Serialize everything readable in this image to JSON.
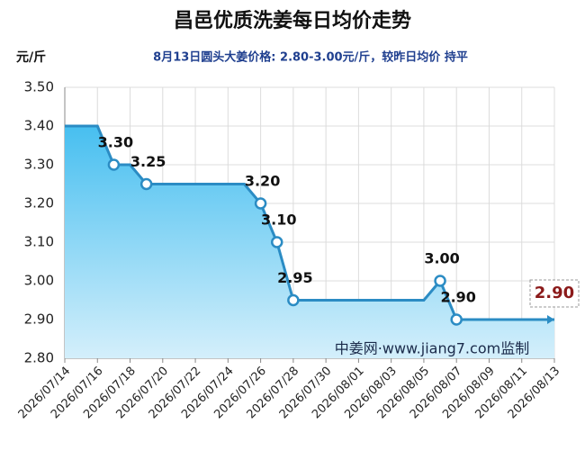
{
  "chart_data": {
    "type": "area",
    "title": "昌邑优质洗姜每日均价走势",
    "subtitle": "8月13日圆头大姜价格: 2.80-3.00元/斤，较昨日均价 持平",
    "y_label": "元/斤",
    "annotation": "中姜网·www.jiang7.com监制",
    "categories": [
      "2026/07/14",
      null,
      "2026/07/16",
      null,
      "2026/07/18",
      null,
      "2026/07/20",
      null,
      "2026/07/22",
      null,
      "2026/07/24",
      null,
      "2026/07/26",
      null,
      "2026/07/28",
      null,
      "2026/07/30",
      null,
      "2026/08/01",
      null,
      "2026/08/03",
      null,
      "2026/08/05",
      null,
      "2026/08/07",
      null,
      "2026/08/09",
      null,
      "2026/08/11",
      null,
      "2026/08/13"
    ],
    "values": [
      3.4,
      3.4,
      3.4,
      3.3,
      3.3,
      3.25,
      3.25,
      3.25,
      3.25,
      3.25,
      3.25,
      3.25,
      3.2,
      3.1,
      2.95,
      2.95,
      2.95,
      2.95,
      2.95,
      2.95,
      2.95,
      2.95,
      2.95,
      3.0,
      2.9,
      2.9,
      2.9,
      2.9,
      2.9,
      2.9,
      2.9
    ],
    "value_labels": [
      null,
      null,
      null,
      "3.30",
      null,
      "3.25",
      null,
      null,
      null,
      null,
      null,
      null,
      "3.20",
      "3.10",
      "2.95",
      null,
      null,
      null,
      null,
      null,
      null,
      null,
      null,
      "3.00",
      "2.90",
      null,
      null,
      null,
      null,
      null,
      "2.90"
    ],
    "color": "#2b8cc4",
    "last_label_color": "#8b1a1a",
    "ylim": [
      2.8,
      3.5
    ],
    "yticks": [
      {
        "value": 2.8,
        "label": "2.80"
      },
      {
        "value": 2.9,
        "label": "2.90"
      },
      {
        "value": 3.0,
        "label": "3.00"
      },
      {
        "value": 3.1,
        "label": "3.10"
      },
      {
        "value": 3.2,
        "label": "3.20"
      },
      {
        "value": 3.3,
        "label": "3.30"
      },
      {
        "value": 3.4,
        "label": "3.40"
      },
      {
        "value": 3.5,
        "label": "3.50"
      }
    ],
    "grid": true
  }
}
